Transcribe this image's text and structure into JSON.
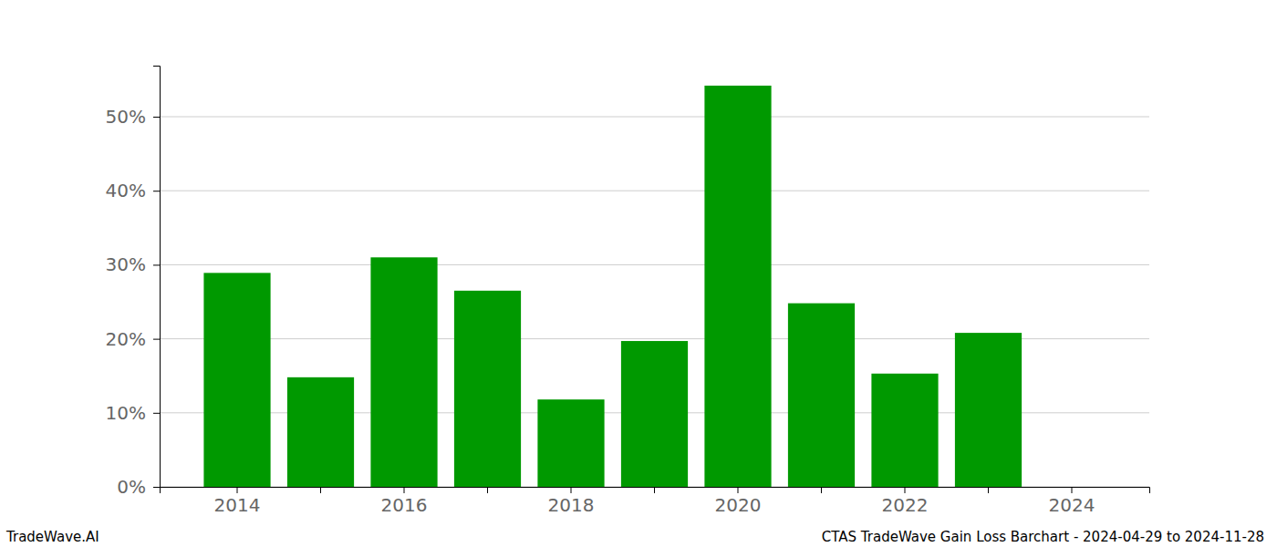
{
  "chart_data": {
    "type": "bar",
    "title": "CTAS TradeWave Gain Loss Barchart - 2024-04-29 to 2024-11-28",
    "annotations": [
      "TradeWave.AI"
    ],
    "categories": [
      "2014",
      null,
      "2016",
      null,
      "2018",
      null,
      "2020",
      null,
      "2022",
      null,
      "2024"
    ],
    "values": [
      28.9,
      14.8,
      31.0,
      26.5,
      11.8,
      19.7,
      54.2,
      24.8,
      15.3,
      20.8,
      null
    ],
    "color": "#009900",
    "ylim": [
      0,
      56.9
    ],
    "yticks": [
      {
        "value": 0,
        "label": "0%"
      },
      {
        "value": 10,
        "label": "10%"
      },
      {
        "value": 20,
        "label": "20%"
      },
      {
        "value": 30,
        "label": "30%"
      },
      {
        "value": 40,
        "label": "40%"
      },
      {
        "value": 50,
        "label": "50%"
      }
    ],
    "grid": true
  }
}
